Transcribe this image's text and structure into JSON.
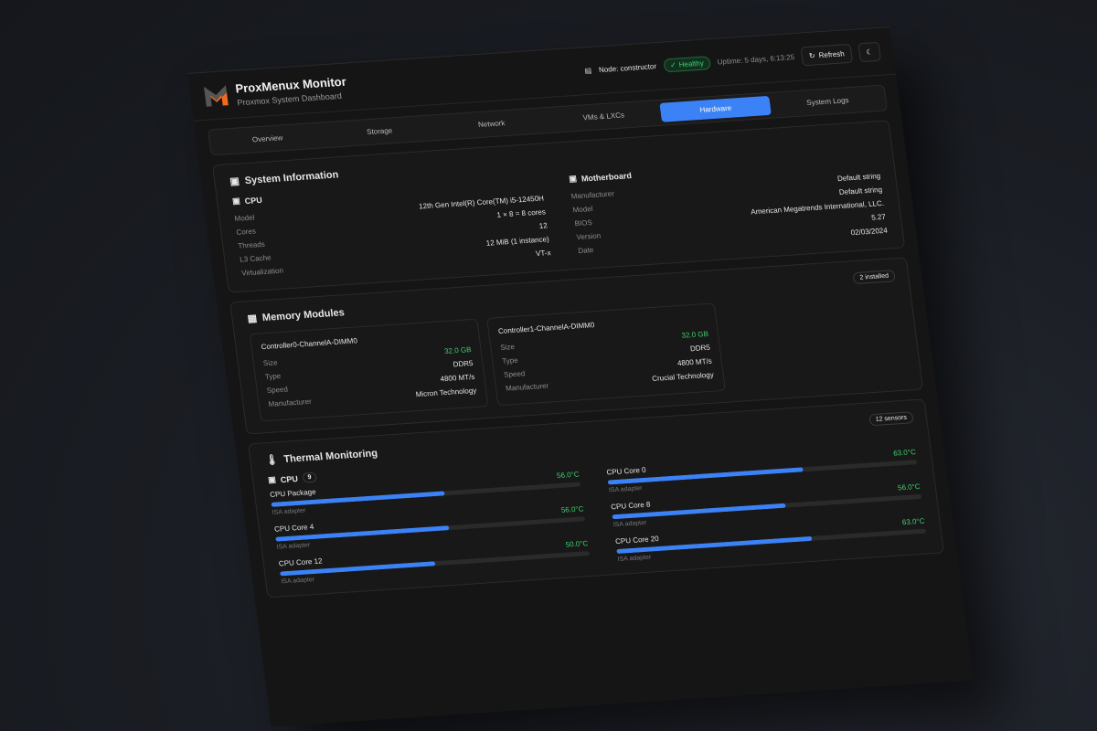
{
  "header": {
    "title": "ProxMenux Monitor",
    "subtitle": "Proxmox System Dashboard",
    "node": "Node: constructor",
    "status": "Healthy",
    "uptime": "Uptime: 5 days, 6:13:25",
    "refresh": "Refresh"
  },
  "tabs": [
    {
      "label": "Overview"
    },
    {
      "label": "Storage"
    },
    {
      "label": "Network"
    },
    {
      "label": "VMs & LXCs"
    },
    {
      "label": "Hardware",
      "active": true
    },
    {
      "label": "System Logs"
    }
  ],
  "system": {
    "title": "System Information",
    "cpu": {
      "title": "CPU",
      "rows": [
        {
          "l": "Model",
          "v": "12th Gen Intel(R) Core(TM) i5-12450H"
        },
        {
          "l": "Cores",
          "v": "1 × 8 = 8 cores"
        },
        {
          "l": "Threads",
          "v": "12"
        },
        {
          "l": "L3 Cache",
          "v": "12 MiB (1 instance)"
        },
        {
          "l": "Virtualization",
          "v": "VT-x"
        }
      ]
    },
    "motherboard": {
      "title": "Motherboard",
      "rows": [
        {
          "l": "Manufacturer",
          "v": "Default string"
        },
        {
          "l": "Model",
          "v": "Default string"
        },
        {
          "l": "BIOS",
          "v": "American Megatrends International, LLC."
        },
        {
          "l": "Version",
          "v": "5.27"
        },
        {
          "l": "Date",
          "v": "02/03/2024"
        }
      ]
    }
  },
  "memory": {
    "title": "Memory Modules",
    "badge": "2 installed",
    "modules": [
      {
        "name": "Controller0-ChannelA-DIMM0",
        "rows": [
          {
            "l": "Size",
            "v": "32.0 GB"
          },
          {
            "l": "Type",
            "v": "DDR5"
          },
          {
            "l": "Speed",
            "v": "4800 MT/s"
          },
          {
            "l": "Manufacturer",
            "v": "Micron Technology"
          }
        ]
      },
      {
        "name": "Controller1-ChannelA-DIMM0",
        "rows": [
          {
            "l": "Size",
            "v": "32.0 GB"
          },
          {
            "l": "Type",
            "v": "DDR5"
          },
          {
            "l": "Speed",
            "v": "4800 MT/s"
          },
          {
            "l": "Manufacturer",
            "v": "Crucial Technology"
          }
        ]
      }
    ]
  },
  "thermal": {
    "title": "Thermal Monitoring",
    "badge": "12 sensors",
    "group": "CPU",
    "group_count": "9",
    "sensors": [
      {
        "name": "CPU Package",
        "temp": "56.0°C",
        "level": 0.56,
        "adapter": "ISA adapter"
      },
      {
        "name": "CPU Core 0",
        "temp": "63.0°C",
        "level": 0.63,
        "adapter": "ISA adapter"
      },
      {
        "name": "CPU Core 4",
        "temp": "56.0°C",
        "level": 0.56,
        "adapter": "ISA adapter"
      },
      {
        "name": "CPU Core 8",
        "temp": "56.0°C",
        "level": 0.56,
        "adapter": "ISA adapter"
      },
      {
        "name": "CPU Core 12",
        "temp": "50.0°C",
        "level": 0.5,
        "adapter": "ISA adapter"
      },
      {
        "name": "CPU Core 20",
        "temp": "63.0°C",
        "level": 0.63,
        "adapter": "ISA adapter"
      }
    ]
  },
  "colors": {
    "accent": "#3b82f6",
    "healthy": "#3ecf6e",
    "logo_orange": "#f26b1d"
  }
}
